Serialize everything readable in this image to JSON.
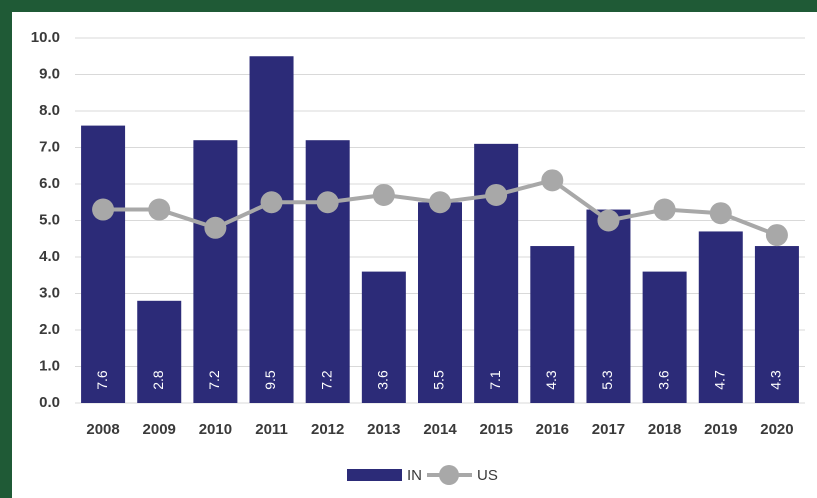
{
  "chart_data": {
    "type": "bar",
    "categories": [
      "2008",
      "2009",
      "2010",
      "2011",
      "2012",
      "2013",
      "2014",
      "2015",
      "2016",
      "2017",
      "2018",
      "2019",
      "2020"
    ],
    "series": [
      {
        "name": "IN",
        "type": "bar",
        "color": "#2c2b78",
        "values": [
          7.6,
          2.8,
          7.2,
          9.5,
          7.2,
          3.6,
          5.5,
          7.1,
          4.3,
          5.3,
          3.6,
          4.7,
          4.3
        ]
      },
      {
        "name": "US",
        "type": "line",
        "color": "#a8a8a8",
        "values": [
          5.3,
          5.3,
          4.8,
          5.5,
          5.5,
          5.7,
          5.5,
          5.7,
          6.1,
          5.0,
          5.3,
          5.2,
          4.6
        ]
      }
    ],
    "ylim": [
      0,
      10
    ],
    "yticks": [
      {
        "value": 0,
        "label": "0.0"
      },
      {
        "value": 1,
        "label": "1.0"
      },
      {
        "value": 2,
        "label": "2.0"
      },
      {
        "value": 3,
        "label": "3.0"
      },
      {
        "value": 4,
        "label": "4.0"
      },
      {
        "value": 5,
        "label": "5.0"
      },
      {
        "value": 6,
        "label": "6.0"
      },
      {
        "value": 7,
        "label": "7.0"
      },
      {
        "value": 8,
        "label": "8.0"
      },
      {
        "value": 9,
        "label": "9.0"
      },
      {
        "value": 10,
        "label": "10.0"
      }
    ],
    "grid": true,
    "legend": "bottom"
  }
}
